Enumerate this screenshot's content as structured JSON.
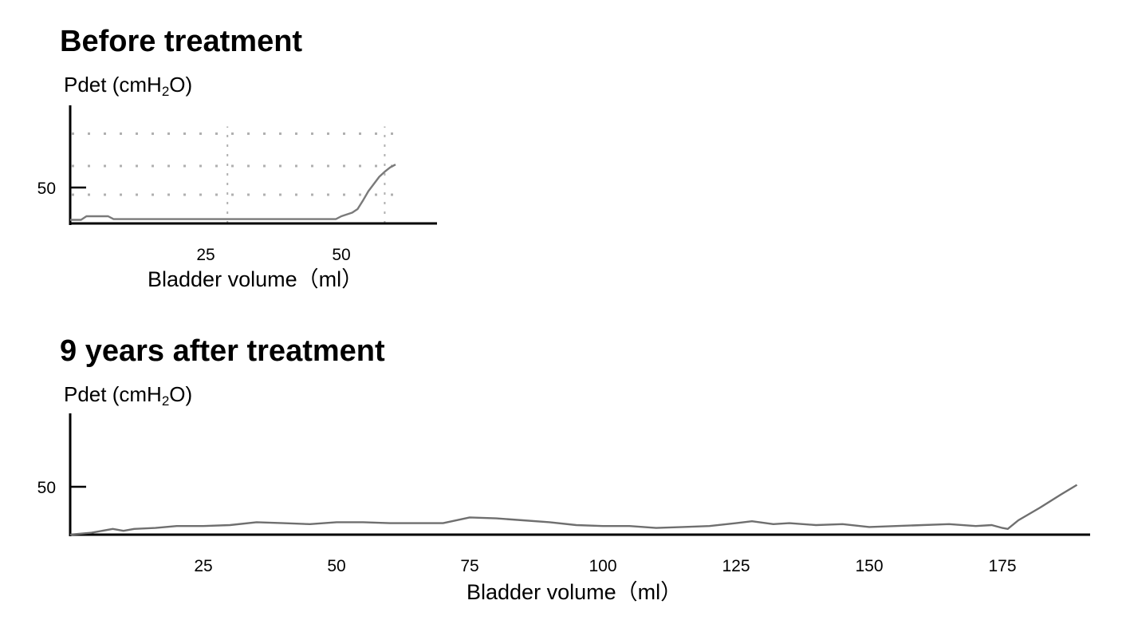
{
  "charts": [
    {
      "title": "Before treatment",
      "ylabel_text": "Pdet (cmH",
      "ylabel_sub": "2",
      "ylabel_end": "O)",
      "xlabel": "Bladder volume（ml）"
    },
    {
      "title": "9 years after treatment",
      "ylabel_text": "Pdet (cmH",
      "ylabel_sub": "2",
      "ylabel_end": "O)",
      "xlabel": "Bladder volume（ml）"
    }
  ],
  "chart_data": [
    {
      "type": "line",
      "title": "Before treatment",
      "xlabel": "Bladder volume（ml）",
      "ylabel": "Pdet (cmH2O)",
      "x_ticks": [
        25,
        50
      ],
      "y_ticks": [
        50
      ],
      "xlim": [
        0,
        68
      ],
      "ylim": [
        0,
        125
      ],
      "grid": true,
      "series": [
        {
          "color": "#7a7a7a",
          "x": [
            0,
            2,
            3,
            7,
            8,
            12,
            20,
            30,
            40,
            49,
            50,
            52,
            53,
            54,
            55,
            56,
            57,
            58,
            59,
            60
          ],
          "y": [
            5,
            5,
            10,
            10,
            6,
            6,
            6,
            6,
            6,
            6,
            10,
            15,
            20,
            32,
            45,
            55,
            65,
            72,
            78,
            82
          ]
        }
      ]
    },
    {
      "type": "line",
      "title": "9 years after treatment",
      "xlabel": "Bladder volume（ml）",
      "ylabel": "Pdet (cmH2O)",
      "x_ticks": [
        25,
        50,
        75,
        100,
        125,
        150,
        175
      ],
      "y_ticks": [
        50
      ],
      "xlim": [
        0,
        190
      ],
      "ylim": [
        0,
        125
      ],
      "grid": false,
      "series": [
        {
          "color": "#6f6f6f",
          "x": [
            0,
            4,
            8,
            10,
            12,
            16,
            20,
            25,
            30,
            35,
            40,
            45,
            50,
            55,
            60,
            65,
            70,
            75,
            80,
            85,
            90,
            95,
            100,
            105,
            110,
            115,
            120,
            125,
            128,
            132,
            135,
            140,
            145,
            150,
            155,
            160,
            165,
            170,
            173,
            175,
            176,
            178,
            182,
            186,
            189
          ],
          "y": [
            0,
            2,
            6,
            4,
            6,
            7,
            9,
            9,
            10,
            13,
            12,
            11,
            13,
            13,
            12,
            12,
            12,
            18,
            17,
            15,
            13,
            10,
            9,
            9,
            7,
            8,
            9,
            12,
            14,
            11,
            12,
            10,
            11,
            8,
            9,
            10,
            11,
            9,
            10,
            7,
            6,
            15,
            28,
            42,
            52
          ]
        }
      ]
    }
  ]
}
